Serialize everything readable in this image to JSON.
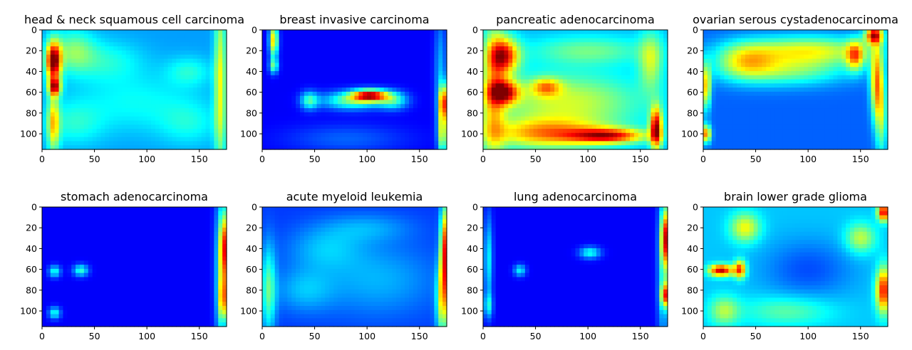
{
  "chart_data": [
    {
      "type": "heatmap",
      "title": "head & neck squamous cell carcinoma",
      "colormap": "jet",
      "xlim": [
        0,
        176
      ],
      "ylim": [
        115,
        0
      ],
      "xticks": [
        0,
        50,
        100,
        150
      ],
      "yticks": [
        0,
        20,
        40,
        60,
        80,
        100
      ],
      "background": 0.28,
      "hotspots": [
        [
          11,
          30,
          5,
          13,
          0.72
        ],
        [
          12,
          55,
          4,
          6,
          0.55
        ],
        [
          11,
          90,
          4,
          20,
          0.35
        ],
        [
          170,
          50,
          4,
          60,
          0.32
        ],
        [
          30,
          20,
          14,
          14,
          0.2
        ],
        [
          60,
          30,
          25,
          14,
          0.12
        ],
        [
          90,
          70,
          40,
          20,
          0.1
        ],
        [
          30,
          90,
          20,
          15,
          0.12
        ],
        [
          140,
          40,
          15,
          10,
          0.12
        ],
        [
          140,
          90,
          20,
          15,
          0.1
        ]
      ]
    },
    {
      "type": "heatmap",
      "title": "breast invasive carcinoma",
      "colormap": "jet",
      "xlim": [
        0,
        176
      ],
      "ylim": [
        115,
        0
      ],
      "xticks": [
        0,
        50,
        100,
        150
      ],
      "yticks": [
        0,
        20,
        40,
        60,
        80,
        100
      ],
      "background": 0.12,
      "hotspots": [
        [
          11,
          10,
          3,
          12,
          0.55
        ],
        [
          11,
          35,
          3,
          5,
          0.32
        ],
        [
          103,
          63,
          12,
          4,
          0.72
        ],
        [
          85,
          68,
          20,
          6,
          0.35
        ],
        [
          45,
          68,
          6,
          6,
          0.3
        ],
        [
          125,
          68,
          10,
          6,
          0.28
        ],
        [
          173,
          70,
          3,
          12,
          0.62
        ],
        [
          172,
          100,
          3,
          15,
          0.45
        ],
        [
          170,
          40,
          4,
          40,
          0.18
        ],
        [
          80,
          105,
          40,
          10,
          0.1
        ]
      ]
    },
    {
      "type": "heatmap",
      "title": "pancreatic adenocarcinoma",
      "colormap": "jet",
      "xlim": [
        0,
        176
      ],
      "ylim": [
        115,
        0
      ],
      "xticks": [
        0,
        50,
        100,
        150
      ],
      "yticks": [
        0,
        20,
        40,
        60,
        80,
        100
      ],
      "background": 0.3,
      "hotspots": [
        [
          20,
          25,
          10,
          12,
          0.55
        ],
        [
          20,
          60,
          10,
          8,
          0.55
        ],
        [
          165,
          95,
          4,
          14,
          0.65
        ],
        [
          120,
          102,
          25,
          5,
          0.5
        ],
        [
          60,
          100,
          40,
          10,
          0.38
        ],
        [
          80,
          70,
          50,
          20,
          0.28
        ],
        [
          10,
          60,
          8,
          50,
          0.3
        ],
        [
          160,
          30,
          8,
          20,
          0.25
        ],
        [
          100,
          20,
          40,
          10,
          0.18
        ],
        [
          60,
          55,
          10,
          6,
          0.3
        ]
      ]
    },
    {
      "type": "heatmap",
      "title": "ovarian serous cystadenocarcinoma",
      "colormap": "jet",
      "xlim": [
        0,
        176
      ],
      "ylim": [
        115,
        0
      ],
      "xticks": [
        0,
        50,
        100,
        150
      ],
      "yticks": [
        0,
        20,
        40,
        60,
        80,
        100
      ],
      "background": 0.22,
      "hotspots": [
        [
          163,
          5,
          6,
          6,
          0.65
        ],
        [
          165,
          50,
          4,
          25,
          0.45
        ],
        [
          3,
          55,
          3,
          15,
          0.45
        ],
        [
          3,
          100,
          3,
          6,
          0.55
        ],
        [
          100,
          20,
          45,
          10,
          0.38
        ],
        [
          40,
          30,
          20,
          12,
          0.3
        ],
        [
          80,
          40,
          40,
          10,
          0.25
        ],
        [
          145,
          25,
          6,
          10,
          0.4
        ],
        [
          170,
          80,
          4,
          30,
          0.3
        ]
      ]
    },
    {
      "type": "heatmap",
      "title": "stomach adenocarcinoma",
      "colormap": "jet",
      "xlim": [
        0,
        176
      ],
      "ylim": [
        115,
        0
      ],
      "xticks": [
        0,
        50,
        100,
        150
      ],
      "yticks": [
        0,
        20,
        40,
        60,
        80,
        100
      ],
      "background": 0.12,
      "hotspots": [
        [
          174,
          40,
          3,
          25,
          0.62
        ],
        [
          173,
          90,
          3,
          15,
          0.45
        ],
        [
          170,
          60,
          4,
          55,
          0.25
        ],
        [
          12,
          62,
          4,
          4,
          0.28
        ],
        [
          37,
          61,
          5,
          4,
          0.3
        ],
        [
          12,
          102,
          4,
          4,
          0.28
        ]
      ]
    },
    {
      "type": "heatmap",
      "title": "acute myeloid leukemia",
      "colormap": "jet",
      "xlim": [
        0,
        176
      ],
      "ylim": [
        115,
        0
      ],
      "xticks": [
        0,
        50,
        100,
        150
      ],
      "yticks": [
        0,
        20,
        40,
        60,
        80,
        100
      ],
      "background": 0.18,
      "hotspots": [
        [
          174,
          40,
          3,
          30,
          0.62
        ],
        [
          172,
          90,
          4,
          25,
          0.42
        ],
        [
          6,
          80,
          5,
          30,
          0.28
        ],
        [
          60,
          40,
          25,
          15,
          0.12
        ],
        [
          110,
          70,
          40,
          25,
          0.12
        ],
        [
          40,
          80,
          20,
          15,
          0.12
        ],
        [
          100,
          20,
          30,
          10,
          0.1
        ]
      ]
    },
    {
      "type": "heatmap",
      "title": "lung adenocarcinoma",
      "colormap": "jet",
      "xlim": [
        0,
        176
      ],
      "ylim": [
        115,
        0
      ],
      "xticks": [
        0,
        50,
        100,
        150
      ],
      "yticks": [
        0,
        20,
        40,
        60,
        80,
        100
      ],
      "background": 0.12,
      "hotspots": [
        [
          174,
          30,
          3,
          20,
          0.62
        ],
        [
          174,
          85,
          3,
          8,
          0.55
        ],
        [
          172,
          60,
          4,
          55,
          0.25
        ],
        [
          5,
          50,
          3,
          30,
          0.25
        ],
        [
          102,
          44,
          7,
          4,
          0.28
        ],
        [
          35,
          61,
          4,
          4,
          0.25
        ],
        [
          5,
          95,
          3,
          8,
          0.22
        ]
      ]
    },
    {
      "type": "heatmap",
      "title": "brain lower grade glioma",
      "colormap": "jet",
      "xlim": [
        0,
        176
      ],
      "ylim": [
        115,
        0
      ],
      "xticks": [
        0,
        50,
        100,
        150
      ],
      "yticks": [
        0,
        20,
        40,
        60,
        80,
        100
      ],
      "background": 0.32,
      "hotspots": [
        [
          17,
          61,
          8,
          4,
          0.62
        ],
        [
          35,
          60,
          4,
          6,
          0.5
        ],
        [
          172,
          5,
          4,
          6,
          0.6
        ],
        [
          172,
          80,
          5,
          15,
          0.55
        ],
        [
          40,
          20,
          10,
          10,
          0.3
        ],
        [
          150,
          30,
          10,
          10,
          0.25
        ],
        [
          100,
          60,
          30,
          20,
          -0.12
        ],
        [
          80,
          100,
          30,
          10,
          0.15
        ],
        [
          20,
          100,
          10,
          10,
          0.22
        ]
      ]
    }
  ]
}
